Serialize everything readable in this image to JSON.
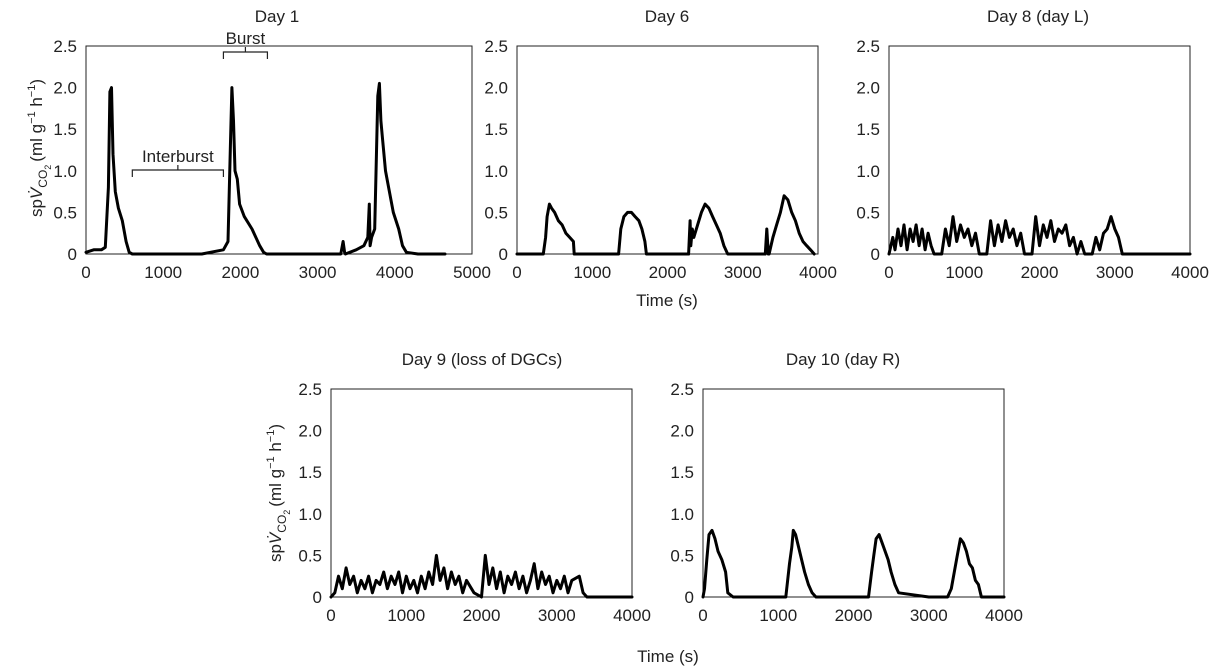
{
  "figure": {
    "shared_xlabel_top": "Time (s)",
    "shared_xlabel_bottom": "Time (s)",
    "ylabel": {
      "prefix": "sp",
      "v": "V̇",
      "sub": "CO",
      "sub2": "2",
      "units": "(ml g",
      "exp1": "−1",
      "mid": " h",
      "exp2": "−1",
      "end": ")"
    },
    "trace_color": "#000000"
  },
  "chart_data": [
    {
      "type": "line",
      "title": "Day 1",
      "xlim": [
        0,
        5000
      ],
      "ylim": [
        0,
        2.5
      ],
      "xticks": [
        0,
        1000,
        2000,
        3000,
        4000,
        5000
      ],
      "yticks": [
        "0",
        "0.5",
        "1.0",
        "1.5",
        "2.0",
        "2.5"
      ],
      "series": [
        {
          "x": [
            0,
            100,
            200,
            250,
            290,
            310,
            330,
            350,
            380,
            420,
            470,
            520,
            560,
            600,
            1000,
            1500,
            1780,
            1840,
            1870,
            1890,
            1910,
            1930,
            1960,
            1990,
            2050,
            2150,
            2250,
            2300,
            2340,
            2400,
            3300,
            3330,
            3350,
            3360,
            3500,
            3600,
            3650,
            3670,
            3680,
            3700,
            3740,
            3780,
            3800,
            3820,
            3840,
            3880,
            3920,
            3980,
            4050,
            4100,
            4150,
            4300,
            4650
          ],
          "y": [
            0.02,
            0.05,
            0.05,
            0.08,
            0.8,
            1.95,
            2.0,
            1.2,
            0.75,
            0.55,
            0.4,
            0.15,
            0.02,
            0,
            0,
            0,
            0.05,
            0.15,
            1.3,
            2.0,
            1.6,
            1.0,
            0.9,
            0.6,
            0.45,
            0.3,
            0.1,
            0.02,
            0,
            0,
            0,
            0.15,
            0.02,
            0,
            0.05,
            0.1,
            0.2,
            0.6,
            0.1,
            0.2,
            0.3,
            1.9,
            2.05,
            1.6,
            1.4,
            1.0,
            0.8,
            0.5,
            0.3,
            0.1,
            0.02,
            0,
            0
          ]
        }
      ],
      "annotations": [
        {
          "text": "Interburst",
          "from": 600,
          "to": 1780
        },
        {
          "text": "Burst",
          "from": 1780,
          "to": 2350
        }
      ]
    },
    {
      "type": "line",
      "title": "Day 6",
      "xlim": [
        0,
        4000
      ],
      "ylim": [
        0,
        2.5
      ],
      "xticks": [
        0,
        1000,
        2000,
        3000,
        4000
      ],
      "yticks": [
        "0",
        "0.5",
        "1.0",
        "1.5",
        "2.0",
        "2.5"
      ],
      "series": [
        {
          "x": [
            0,
            350,
            380,
            400,
            430,
            460,
            500,
            550,
            600,
            650,
            700,
            750,
            760,
            1000,
            1350,
            1380,
            1420,
            1470,
            1520,
            1570,
            1620,
            1660,
            1700,
            1720,
            2000,
            2280,
            2300,
            2310,
            2330,
            2350,
            2400,
            2450,
            2500,
            2550,
            2600,
            2650,
            2700,
            2750,
            2800,
            3200,
            3300,
            3320,
            3340,
            3350,
            3400,
            3450,
            3500,
            3550,
            3600,
            3650,
            3700,
            3750,
            3800,
            3850,
            3900,
            3950
          ],
          "y": [
            0,
            0,
            0.2,
            0.45,
            0.6,
            0.55,
            0.5,
            0.4,
            0.35,
            0.25,
            0.2,
            0.15,
            0,
            0,
            0,
            0.3,
            0.45,
            0.5,
            0.5,
            0.45,
            0.4,
            0.3,
            0.15,
            0,
            0,
            0,
            0.4,
            0.1,
            0.3,
            0.2,
            0.35,
            0.5,
            0.6,
            0.55,
            0.45,
            0.35,
            0.25,
            0.1,
            0,
            0,
            0,
            0.3,
            0,
            0,
            0.2,
            0.35,
            0.5,
            0.7,
            0.65,
            0.5,
            0.4,
            0.25,
            0.15,
            0.1,
            0.05,
            0
          ]
        }
      ]
    },
    {
      "type": "line",
      "title": "Day 8 (day L)",
      "xlim": [
        0,
        4000
      ],
      "ylim": [
        0,
        2.5
      ],
      "xticks": [
        0,
        1000,
        2000,
        3000,
        4000
      ],
      "yticks": [
        "0",
        "0.5",
        "1.0",
        "1.5",
        "2.0",
        "2.5"
      ],
      "series": [
        {
          "x": [
            0,
            50,
            80,
            120,
            160,
            200,
            240,
            280,
            320,
            360,
            400,
            440,
            480,
            520,
            560,
            600,
            700,
            750,
            800,
            850,
            900,
            950,
            1000,
            1050,
            1100,
            1150,
            1200,
            1300,
            1350,
            1400,
            1450,
            1500,
            1550,
            1600,
            1650,
            1700,
            1750,
            1800,
            1900,
            1950,
            2000,
            2050,
            2100,
            2150,
            2200,
            2250,
            2300,
            2350,
            2400,
            2450,
            2500,
            2550,
            2600,
            2700,
            2750,
            2800,
            2850,
            2900,
            2950,
            3000,
            3050,
            3100,
            3200,
            4000
          ],
          "y": [
            0,
            0.2,
            0.05,
            0.3,
            0.1,
            0.35,
            0.05,
            0.3,
            0.15,
            0.35,
            0.1,
            0.3,
            0.05,
            0.25,
            0.1,
            0,
            0,
            0.3,
            0.1,
            0.45,
            0.15,
            0.35,
            0.2,
            0.3,
            0.1,
            0.25,
            0,
            0,
            0.4,
            0.1,
            0.35,
            0.15,
            0.4,
            0.2,
            0.3,
            0.1,
            0.25,
            0,
            0,
            0.45,
            0.1,
            0.35,
            0.2,
            0.4,
            0.15,
            0.3,
            0.25,
            0.35,
            0.1,
            0.2,
            0,
            0.15,
            0,
            0,
            0.2,
            0.05,
            0.25,
            0.3,
            0.45,
            0.3,
            0.2,
            0,
            0,
            0
          ]
        }
      ]
    },
    {
      "type": "line",
      "title": "Day 9 (loss of DGCs)",
      "xlim": [
        0,
        4000
      ],
      "ylim": [
        0,
        2.5
      ],
      "xticks": [
        0,
        1000,
        2000,
        3000,
        4000
      ],
      "yticks": [
        "0",
        "0.5",
        "1.0",
        "1.5",
        "2.0",
        "2.5"
      ],
      "series": [
        {
          "x": [
            0,
            50,
            100,
            150,
            200,
            250,
            300,
            350,
            400,
            450,
            500,
            550,
            600,
            650,
            700,
            750,
            800,
            850,
            900,
            950,
            1000,
            1050,
            1100,
            1150,
            1200,
            1250,
            1300,
            1350,
            1400,
            1450,
            1500,
            1550,
            1600,
            1650,
            1700,
            1750,
            1800,
            1900,
            2000,
            2050,
            2100,
            2150,
            2200,
            2250,
            2300,
            2350,
            2400,
            2450,
            2500,
            2550,
            2600,
            2650,
            2700,
            2750,
            2800,
            2850,
            2900,
            2950,
            3000,
            3050,
            3100,
            3150,
            3200,
            3300,
            3350,
            3400,
            4000
          ],
          "y": [
            0,
            0.05,
            0.25,
            0.1,
            0.35,
            0.15,
            0.25,
            0.05,
            0.2,
            0.1,
            0.25,
            0.05,
            0.2,
            0.15,
            0.3,
            0.1,
            0.25,
            0.15,
            0.3,
            0.05,
            0.25,
            0.1,
            0.2,
            0.05,
            0.25,
            0.1,
            0.3,
            0.15,
            0.5,
            0.2,
            0.35,
            0.1,
            0.3,
            0.15,
            0.25,
            0.05,
            0.2,
            0.05,
            0,
            0.5,
            0.15,
            0.35,
            0.1,
            0.3,
            0.05,
            0.25,
            0.15,
            0.3,
            0.1,
            0.25,
            0.05,
            0.2,
            0.4,
            0.1,
            0.3,
            0.15,
            0.25,
            0.05,
            0.2,
            0.1,
            0.25,
            0.05,
            0.2,
            0.25,
            0.05,
            0,
            0
          ]
        }
      ]
    },
    {
      "type": "line",
      "title": "Day 10 (day R)",
      "xlim": [
        0,
        4000
      ],
      "ylim": [
        0,
        2.5
      ],
      "xticks": [
        0,
        1000,
        2000,
        3000,
        4000
      ],
      "yticks": [
        "0",
        "0.5",
        "1.0",
        "1.5",
        "2.0",
        "2.5"
      ],
      "series": [
        {
          "x": [
            0,
            20,
            50,
            80,
            120,
            160,
            200,
            250,
            300,
            330,
            400,
            1000,
            1100,
            1150,
            1180,
            1200,
            1230,
            1270,
            1310,
            1350,
            1400,
            1450,
            1500,
            2000,
            2200,
            2240,
            2270,
            2300,
            2340,
            2380,
            2420,
            2460,
            2500,
            2550,
            2600,
            3000,
            3250,
            3300,
            3340,
            3380,
            3420,
            3460,
            3500,
            3540,
            3580,
            3620,
            3660,
            3700,
            4000
          ],
          "y": [
            0,
            0.1,
            0.45,
            0.75,
            0.8,
            0.7,
            0.55,
            0.45,
            0.3,
            0.05,
            0,
            0,
            0,
            0.4,
            0.6,
            0.8,
            0.75,
            0.6,
            0.45,
            0.3,
            0.15,
            0.05,
            0,
            0,
            0,
            0.3,
            0.5,
            0.7,
            0.75,
            0.65,
            0.55,
            0.45,
            0.3,
            0.15,
            0.05,
            0,
            0,
            0.1,
            0.3,
            0.5,
            0.7,
            0.65,
            0.55,
            0.4,
            0.35,
            0.2,
            0.15,
            0,
            0
          ]
        }
      ]
    }
  ]
}
